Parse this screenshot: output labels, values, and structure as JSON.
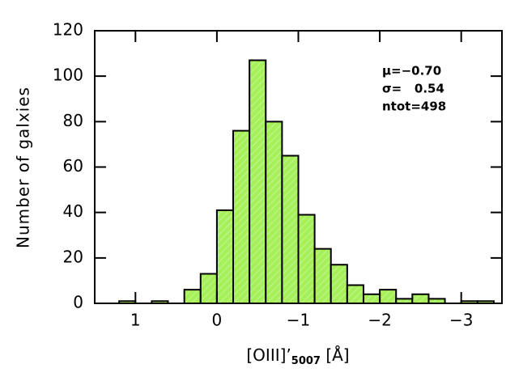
{
  "chart_data": {
    "type": "histogram",
    "ylabel": "Number of galxies",
    "xlabel": {
      "main": "[OIII]’",
      "sub": "5007",
      "unit": " [Å]"
    },
    "annotations": [
      "μ=−0.70",
      "σ=   0.54",
      "ntot=498"
    ],
    "bins": [
      1.4,
      1.2,
      1.0,
      0.8,
      0.6,
      0.4,
      0.2,
      0.0,
      -0.2,
      -0.4,
      -0.6,
      -0.8,
      -1.0,
      -1.2,
      -1.4,
      -1.6,
      -1.8,
      -2.0,
      -2.2,
      -2.4,
      -2.6,
      -2.8,
      -3.0,
      -3.2,
      -3.4
    ],
    "values": [
      0,
      1,
      0,
      1,
      0,
      6,
      13,
      41,
      76,
      107,
      80,
      65,
      39,
      24,
      17,
      8,
      4,
      6,
      2,
      4,
      2,
      0,
      1,
      1
    ],
    "color": "#a6f05a",
    "xlim": [
      1.5,
      -3.5
    ],
    "xticks": [
      1,
      0,
      {
        "value": -1,
        "label": "−1"
      },
      {
        "value": -2,
        "label": "−2"
      },
      {
        "value": -3,
        "label": "−3"
      }
    ],
    "ylim": [
      0,
      120
    ],
    "yticks": [
      0,
      20,
      40,
      60,
      80,
      100,
      120
    ]
  }
}
